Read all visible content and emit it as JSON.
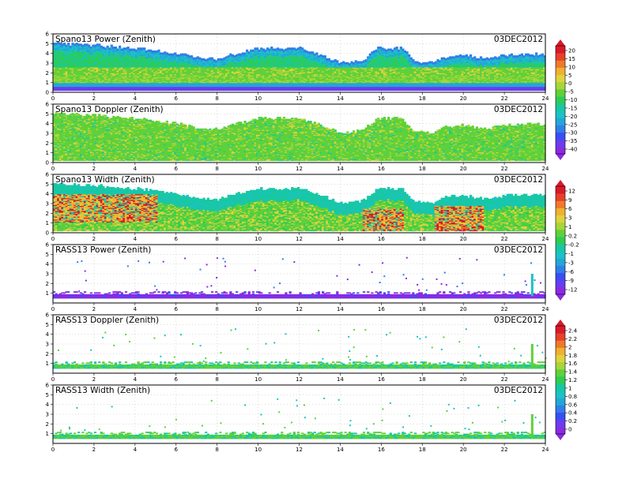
{
  "date_label": "03DEC2012",
  "x_ticks": [
    "0",
    "2",
    "4",
    "6",
    "8",
    "10",
    "12",
    "14",
    "16",
    "18",
    "20",
    "22",
    "24"
  ],
  "palette": [
    "#8a2be2",
    "#6a3df0",
    "#3a4ef5",
    "#2f7fe8",
    "#24a6d8",
    "#1cc2c4",
    "#18c8a0",
    "#2ecc55",
    "#5fd13a",
    "#a7d63a",
    "#e0d23c",
    "#f0b030",
    "#ee7a2a",
    "#e8402a",
    "#d81a2a"
  ],
  "colorbars": [
    {
      "id": "cb-snr",
      "labels": [
        "20",
        "15",
        "10",
        "5",
        "0",
        "-5",
        "-10",
        "-15",
        "-20",
        "-25",
        "-30",
        "-35",
        "-40"
      ]
    },
    {
      "id": "cb-width",
      "labels": [
        "12",
        "9",
        "6",
        "3",
        "1",
        "0.2",
        "-0.2",
        "-1",
        "-3",
        "-6",
        "-9",
        "-12"
      ]
    },
    {
      "id": "cb-rass",
      "labels": [
        "2.4",
        "2.2",
        "2",
        "1.8",
        "1.6",
        "1.4",
        "1.2",
        "1",
        "0.8",
        "0.6",
        "0.4",
        "0.2",
        "0"
      ]
    }
  ],
  "chart_data": [
    {
      "type": "heatmap",
      "title": "Spano13 Power (Zenith)",
      "xlim": [
        0,
        24
      ],
      "ylim": [
        0,
        6
      ],
      "y_ticks": [
        "0",
        "1",
        "2",
        "3",
        "4",
        "5",
        "6"
      ]
    },
    {
      "type": "heatmap",
      "title": "Spano13 Doppler (Zenith)",
      "xlim": [
        0,
        24
      ],
      "ylim": [
        0,
        6
      ],
      "y_ticks": [
        "0",
        "1",
        "2",
        "3",
        "4",
        "5",
        "6"
      ]
    },
    {
      "type": "heatmap",
      "title": "Spano13 Width (Zenith)",
      "xlim": [
        0,
        24
      ],
      "ylim": [
        0,
        6
      ],
      "y_ticks": [
        "0",
        "1",
        "2",
        "3",
        "4",
        "5",
        "6"
      ]
    },
    {
      "type": "heatmap",
      "title": "RASS13 Power (Zenith)",
      "xlim": [
        0,
        24
      ],
      "ylim": [
        0,
        6
      ],
      "y_ticks": [
        "1",
        "2",
        "3",
        "4",
        "5",
        "6"
      ]
    },
    {
      "type": "heatmap",
      "title": "RASS13 Doppler (Zenith)",
      "xlim": [
        0,
        24
      ],
      "ylim": [
        0,
        6
      ],
      "y_ticks": [
        "1",
        "2",
        "3",
        "4",
        "5",
        "6"
      ]
    },
    {
      "type": "heatmap",
      "title": "RASS13 Width (Zenith)",
      "xlim": [
        0,
        24
      ],
      "ylim": [
        0,
        6
      ],
      "y_ticks": [
        "1",
        "2",
        "3",
        "4",
        "5",
        "6"
      ]
    }
  ]
}
